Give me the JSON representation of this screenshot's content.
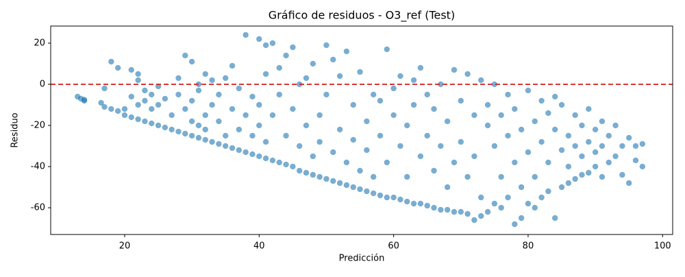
{
  "chart_data": {
    "type": "scatter",
    "title": "Gráfico de residuos - O3_ref (Test)",
    "x_label": "Predicción",
    "y_label": "Residuo",
    "color": "#1f77b4",
    "reference_line": {
      "y": 0,
      "color": "#d62728"
    },
    "xlim": [
      9,
      101.5
    ],
    "ylim": [
      -73,
      28.3
    ],
    "xticks": [
      20,
      40,
      60,
      80,
      100
    ],
    "yticks": [
      20,
      0,
      -20,
      -40,
      -60
    ],
    "x": [
      13,
      13.5,
      14,
      14,
      16.5,
      17,
      17,
      18,
      18,
      19,
      19,
      20,
      20,
      21,
      21,
      21,
      22,
      22,
      22,
      22,
      23,
      23,
      23,
      24,
      24,
      24,
      25,
      25,
      25,
      26,
      26,
      27,
      27,
      28,
      28,
      28,
      29,
      29,
      29,
      30,
      30,
      30,
      30,
      31,
      31,
      31,
      31,
      32,
      32,
      32,
      32,
      33,
      33,
      33,
      34,
      34,
      34,
      35,
      35,
      35,
      36,
      36,
      36,
      37,
      37,
      37,
      38,
      38,
      38,
      39,
      39,
      39,
      40,
      40,
      40,
      40,
      41,
      41,
      41,
      41,
      42,
      42,
      42,
      43,
      43,
      43,
      44,
      44,
      44,
      45,
      45,
      45,
      46,
      46,
      46,
      47,
      47,
      47,
      48,
      48,
      48,
      49,
      49,
      49,
      50,
      50,
      50,
      51,
      51,
      51,
      52,
      52,
      52,
      53,
      53,
      53,
      54,
      54,
      54,
      55,
      55,
      55,
      56,
      56,
      56,
      57,
      57,
      57,
      58,
      58,
      58,
      59,
      59,
      59,
      60,
      60,
      60,
      61,
      61,
      61,
      62,
      62,
      62,
      63,
      63,
      63,
      64,
      64,
      64,
      65,
      65,
      65,
      66,
      66,
      66,
      67,
      67,
      67,
      68,
      68,
      68,
      69,
      69,
      69,
      70,
      70,
      70,
      71,
      71,
      71,
      72,
      72,
      72,
      73,
      73,
      73,
      74,
      74,
      74,
      75,
      75,
      75,
      76,
      76,
      76,
      77,
      77,
      77,
      78,
      78,
      78,
      79,
      79,
      79,
      80,
      80,
      80,
      81,
      81,
      81,
      82,
      82,
      82,
      83,
      83,
      83,
      84,
      84,
      84,
      85,
      85,
      85,
      86,
      86,
      86,
      87,
      87,
      87,
      88,
      88,
      88,
      89,
      89,
      89,
      90,
      90,
      90,
      91,
      91,
      91,
      92,
      92,
      93,
      93,
      94,
      94,
      95,
      95,
      96,
      96,
      97,
      97
    ],
    "values": [
      -6,
      -7,
      -8,
      -7.5,
      -9,
      -2,
      -11,
      -12,
      11,
      8,
      -13,
      -15,
      -12,
      -16,
      -6,
      7,
      5,
      2,
      -17,
      -10,
      -18,
      -8,
      -3,
      -19,
      -12,
      -5,
      -20,
      -1,
      -10,
      -21,
      -7,
      -22,
      -15,
      3,
      -23,
      -5,
      -24,
      -12,
      14,
      -25,
      11,
      -18,
      -8,
      -26,
      -20,
      -3,
      0,
      -27,
      -15,
      5,
      -22,
      -28,
      -10,
      2,
      -29,
      -18,
      -5,
      -30,
      -25,
      3,
      -31,
      -12,
      9,
      -32,
      -22,
      -2,
      -33,
      24,
      -15,
      -34,
      -25,
      -6,
      -35,
      22,
      -20,
      -10,
      19,
      -36,
      -28,
      5,
      -37,
      20,
      -15,
      -38,
      -5,
      8,
      -39,
      -25,
      14,
      -40,
      -12,
      18,
      -42,
      -30,
      0,
      -43,
      3,
      -20,
      -44,
      -35,
      10,
      -45,
      -15,
      -28,
      -46,
      19,
      -5,
      -47,
      12,
      -33,
      -48,
      -22,
      4,
      -49,
      16,
      -38,
      -50,
      -10,
      -27,
      -51,
      6,
      -42,
      -52,
      -18,
      -32,
      -53,
      -5,
      -45,
      -54,
      -25,
      -8,
      -55,
      17,
      -38,
      -55,
      -15,
      -2,
      -56,
      -30,
      4,
      -57,
      -20,
      -45,
      -58,
      2,
      -10,
      -58,
      -35,
      8,
      -59,
      -25,
      -5,
      -60,
      -42,
      -12,
      -61,
      0,
      -30,
      -61,
      -50,
      -18,
      -62,
      7,
      -38,
      -62,
      -8,
      -28,
      -63,
      5,
      -45,
      -66,
      -15,
      -35,
      -64,
      2,
      -55,
      -62,
      -20,
      -10,
      -58,
      -30,
      0,
      -60,
      -45,
      -15,
      -55,
      -25,
      -5,
      -68,
      -38,
      -12,
      -65,
      -50,
      -22,
      -58,
      -3,
      -33,
      -60,
      -18,
      -45,
      -55,
      -8,
      -28,
      -52,
      -38,
      -14,
      -65,
      -22,
      -6,
      -50,
      -32,
      -10,
      -48,
      -25,
      -40,
      -46,
      -15,
      -30,
      -44,
      -20,
      -35,
      -43,
      -12,
      -28,
      -40,
      -22,
      -33,
      -45,
      -18,
      -30,
      -38,
      -25,
      -35,
      -20,
      -44,
      -30,
      -48,
      -26,
      -37,
      -30,
      -29,
      -40
    ]
  }
}
